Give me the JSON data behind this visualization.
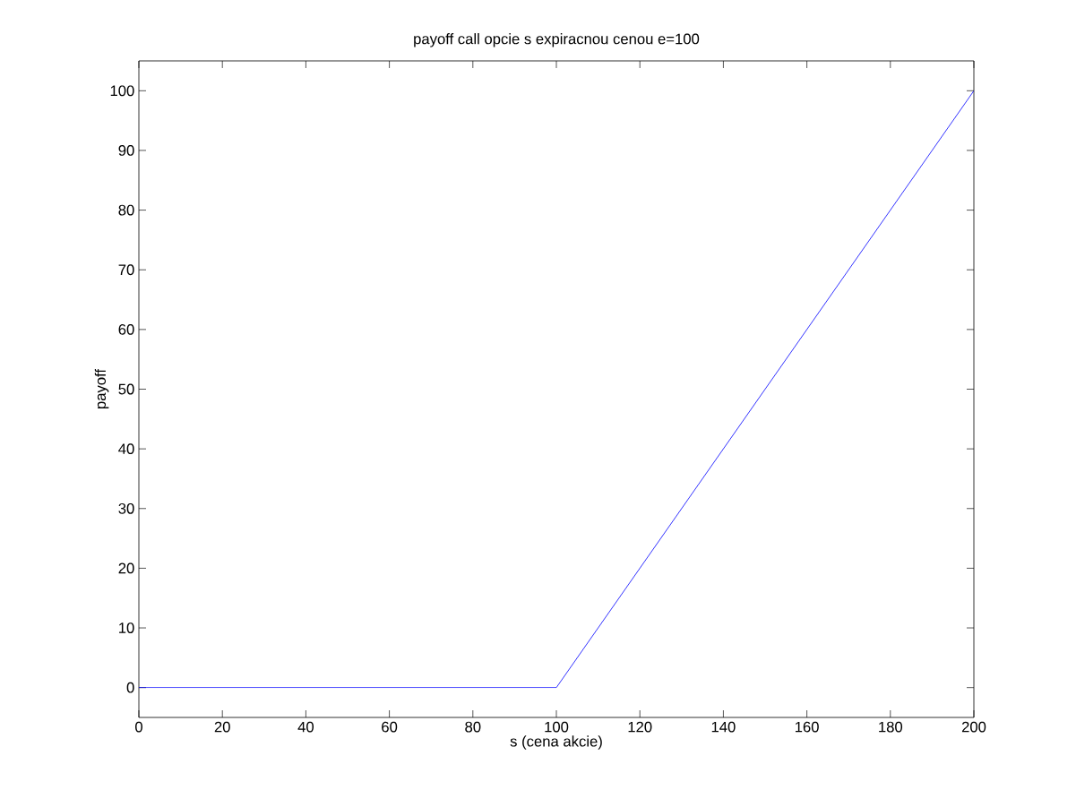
{
  "chart_data": {
    "type": "line",
    "title": "payoff call opcie s expiracnou cenou e=100",
    "xlabel": "s (cena akcie)",
    "ylabel": "payoff",
    "x": [
      0,
      100,
      200
    ],
    "series": [
      {
        "color": "#0000ff",
        "values": [
          0,
          0,
          100
        ]
      }
    ],
    "xlim": [
      0,
      200
    ],
    "ylim": [
      -5,
      105
    ],
    "xticks": [
      0,
      20,
      40,
      60,
      80,
      100,
      120,
      140,
      160,
      180,
      200
    ],
    "yticks": [
      0,
      10,
      20,
      30,
      40,
      50,
      60,
      70,
      80,
      90,
      100
    ],
    "grid": false,
    "marker": "none",
    "line_style": "solid"
  }
}
